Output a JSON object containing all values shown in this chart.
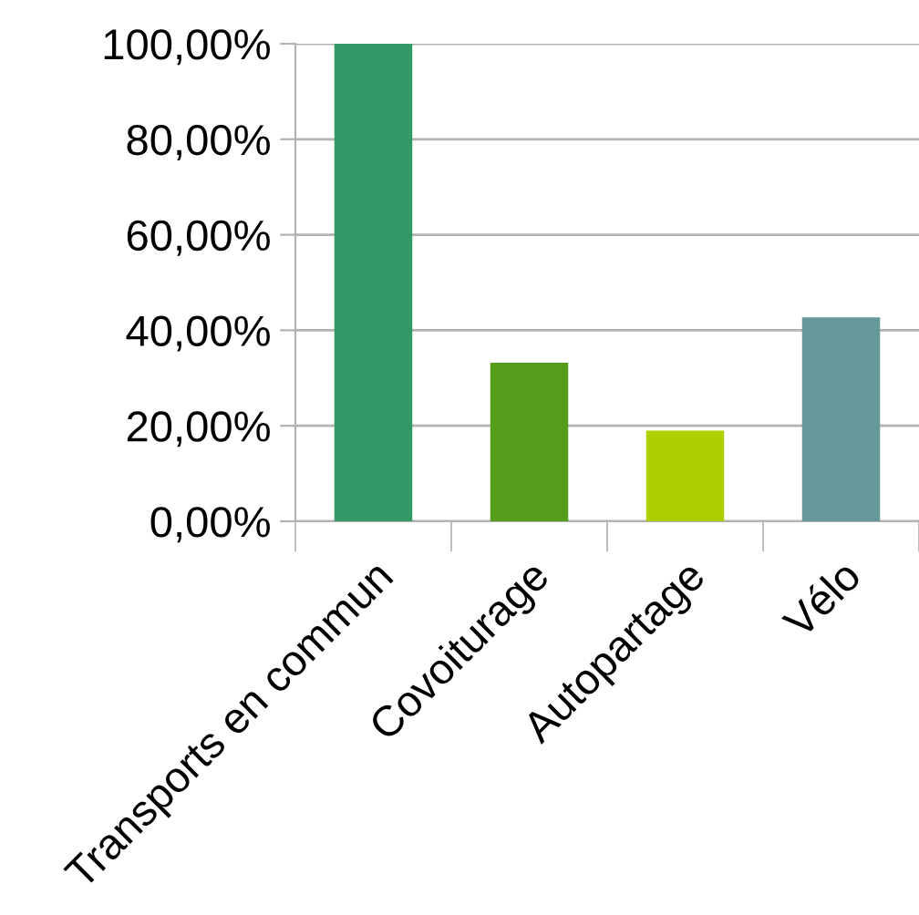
{
  "chart_data": {
    "type": "bar",
    "categories": [
      "Transports en commun",
      "Covoiturage",
      "Autopartage",
      "Vélo"
    ],
    "values": [
      100,
      33.2,
      19,
      42.7
    ],
    "colors": [
      "#339966",
      "#579d1c",
      "#aecf00",
      "#669999"
    ],
    "ylim": [
      0,
      100
    ],
    "yticks": [
      {
        "value": 0,
        "label": "0,00%"
      },
      {
        "value": 20,
        "label": "20,00%"
      },
      {
        "value": 40,
        "label": "40,00%"
      },
      {
        "value": 60,
        "label": "60,00%"
      },
      {
        "value": 80,
        "label": "80,00%"
      },
      {
        "value": 100,
        "label": "100,00%"
      }
    ],
    "grid": "y"
  }
}
